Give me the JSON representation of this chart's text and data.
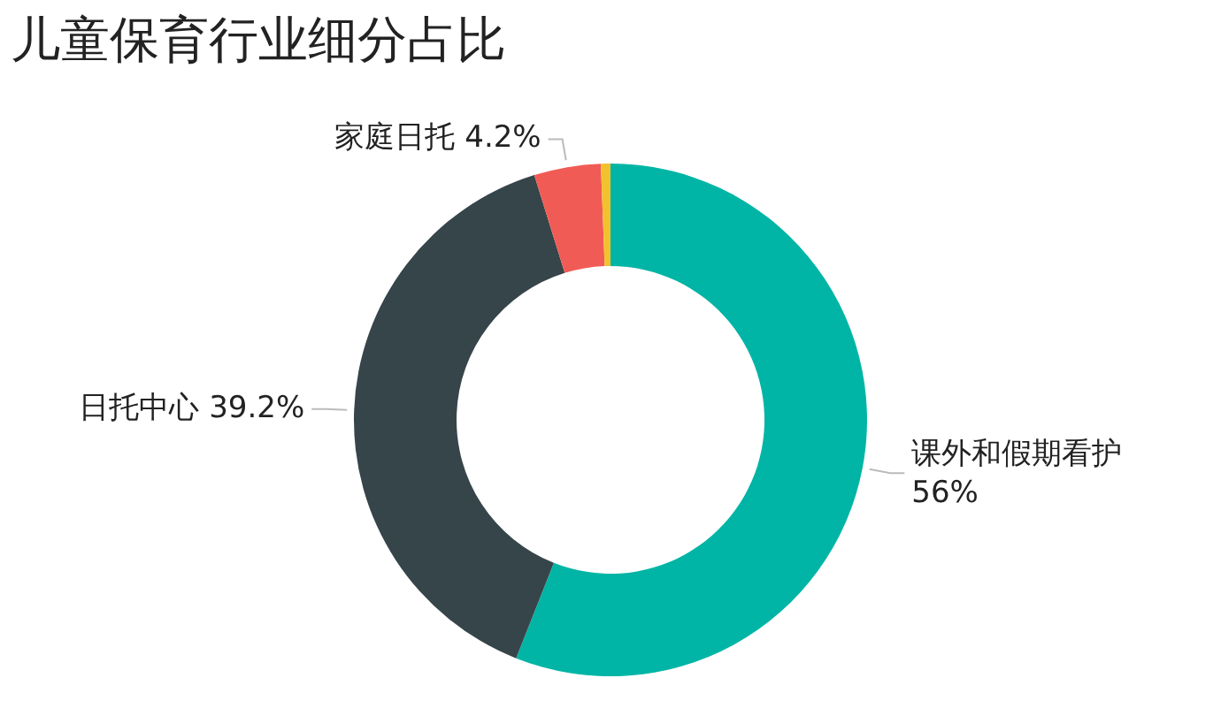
{
  "chart_data": {
    "type": "donut",
    "title": "儿童保育行业细分占比",
    "categories": [
      "课外和假期看护",
      "日托中心",
      "家庭日托",
      null
    ],
    "values": [
      56,
      39.2,
      4.2,
      0.6
    ],
    "value_labels": [
      "56%",
      "39.2%",
      "4.2%",
      null
    ],
    "colors": [
      "#00b5a5",
      "#36454a",
      "#f15b55",
      "#f2c12e"
    ],
    "legend": false
  }
}
